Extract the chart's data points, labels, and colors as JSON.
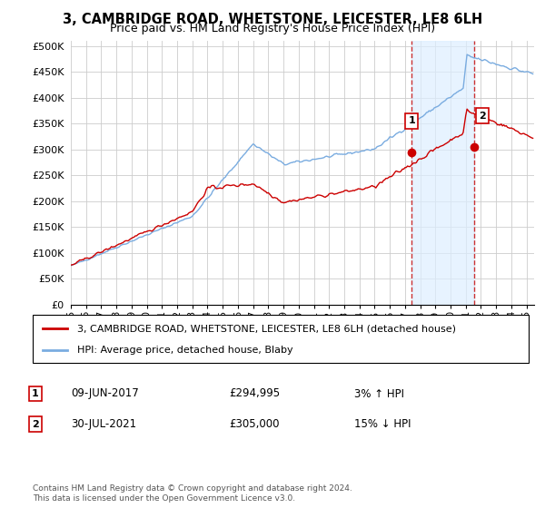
{
  "title": "3, CAMBRIDGE ROAD, WHETSTONE, LEICESTER, LE8 6LH",
  "subtitle": "Price paid vs. HM Land Registry's House Price Index (HPI)",
  "ylabel_ticks": [
    "£0",
    "£50K",
    "£100K",
    "£150K",
    "£200K",
    "£250K",
    "£300K",
    "£350K",
    "£400K",
    "£450K",
    "£500K"
  ],
  "ytick_vals": [
    0,
    50000,
    100000,
    150000,
    200000,
    250000,
    300000,
    350000,
    400000,
    450000,
    500000
  ],
  "ylim": [
    0,
    510000
  ],
  "xlim_start": 1995.0,
  "xlim_end": 2025.5,
  "background_color": "#ffffff",
  "plot_bg_color": "#ffffff",
  "grid_color": "#cccccc",
  "legend_label_red": "3, CAMBRIDGE ROAD, WHETSTONE, LEICESTER, LE8 6LH (detached house)",
  "legend_label_blue": "HPI: Average price, detached house, Blaby",
  "sale1_date": "09-JUN-2017",
  "sale1_price": "£294,995",
  "sale1_hpi": "3% ↑ HPI",
  "sale1_x": 2017.44,
  "sale1_y": 294995,
  "sale2_date": "30-JUL-2021",
  "sale2_price": "£305,000",
  "sale2_hpi": "15% ↓ HPI",
  "sale2_x": 2021.58,
  "sale2_y": 305000,
  "footer": "Contains HM Land Registry data © Crown copyright and database right 2024.\nThis data is licensed under the Open Government Licence v3.0.",
  "red_color": "#cc0000",
  "blue_color": "#7aace0",
  "vline_color": "#cc3333",
  "shade_color": "#ddeeff",
  "annotation_box_color": "#cc0000"
}
